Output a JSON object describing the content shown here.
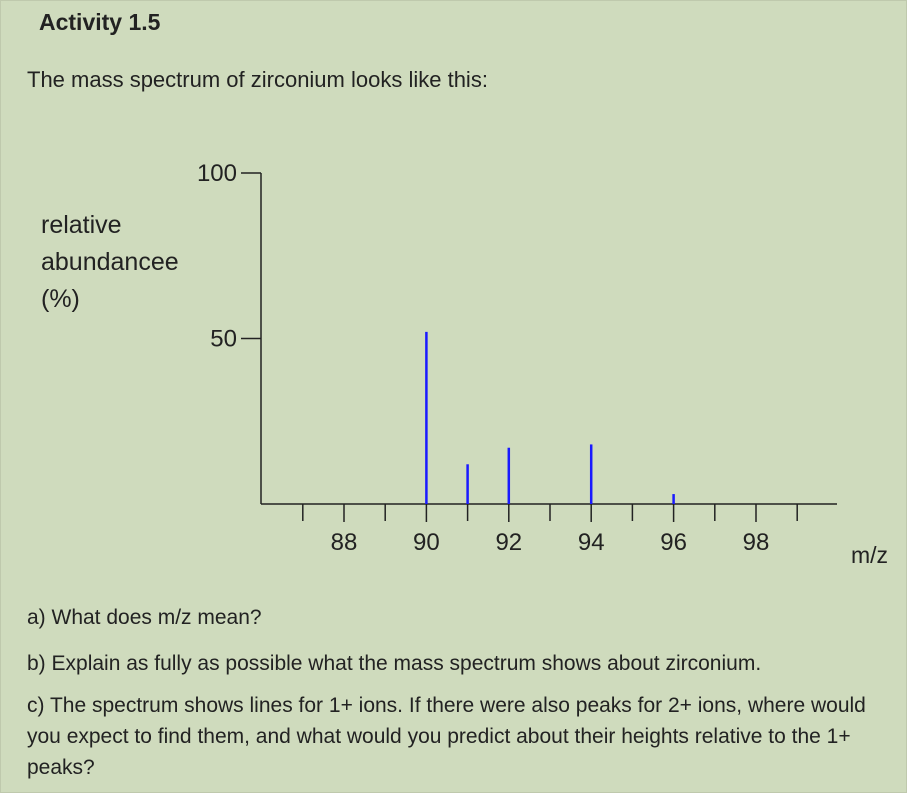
{
  "activity": {
    "title": "Activity 1.5",
    "intro": "The mass spectrum of zirconium looks like this:"
  },
  "chart_data": {
    "type": "bar",
    "xlabel": "m/z",
    "ylabel_lines": [
      "relative",
      "abundancee",
      "(%)"
    ],
    "y_tick_labels": [
      "100",
      "50"
    ],
    "x_tick_labels": [
      "88",
      "90",
      "92",
      "94",
      "96",
      "98"
    ],
    "ylim": [
      0,
      100
    ],
    "xlim": [
      86,
      101
    ],
    "y_minor_step": 10,
    "x_minor_step": 1,
    "series": [
      {
        "x": [
          90,
          91,
          92,
          94,
          96
        ],
        "values": [
          52,
          12,
          17,
          18,
          3
        ]
      }
    ],
    "bar_color": "#1a1aff",
    "grid": false
  },
  "questions": {
    "a": "a) What does m/z mean?",
    "b": "b) Explain as fully as possible what the mass spectrum shows about zirconium.",
    "c": "c) The spectrum shows lines for 1+ ions. If there were also peaks for 2+ ions, where would you expect to find them, and what would you predict about their heights relative to the 1+ peaks?"
  }
}
